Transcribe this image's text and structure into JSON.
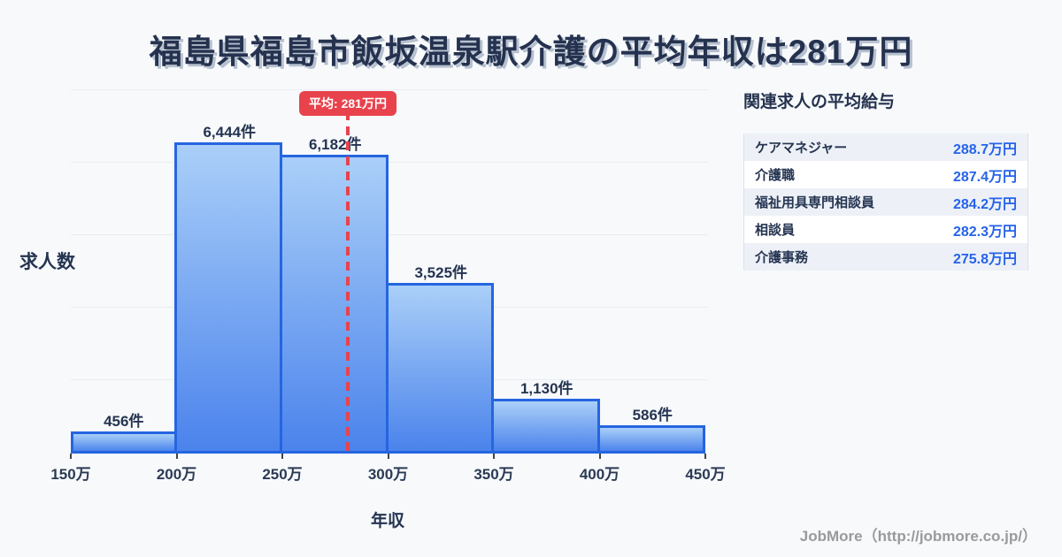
{
  "title": "福島県福島市飯坂温泉駅介護の平均年収は281万円",
  "chart_data": {
    "type": "bar",
    "title": "福島県福島市飯坂温泉駅介護の平均年収は281万円",
    "xlabel": "年収",
    "ylabel": "求人数",
    "categories": [
      "150万-200万",
      "200万-250万",
      "250万-300万",
      "300万-350万",
      "350万-400万",
      "400万-450万"
    ],
    "values": [
      456,
      6444,
      6182,
      3525,
      1130,
      586
    ],
    "bar_labels": [
      "456件",
      "6,444件",
      "6,182件",
      "3,525件",
      "1,130件",
      "586件"
    ],
    "x_ticks": [
      "150万",
      "200万",
      "250万",
      "300万",
      "350万",
      "400万",
      "450万"
    ],
    "x_range": [
      150,
      450
    ],
    "ylim": [
      0,
      6800
    ],
    "grid": "horizontal",
    "mean": {
      "value": 281,
      "label": "平均: 281万円"
    }
  },
  "side_panel": {
    "title": "関連求人の平均給与",
    "rows": [
      {
        "label": "ケアマネジャー",
        "value": "288.7万円"
      },
      {
        "label": "介護職",
        "value": "287.4万円"
      },
      {
        "label": "福祉用具専門相談員",
        "value": "284.2万円"
      },
      {
        "label": "相談員",
        "value": "282.3万円"
      },
      {
        "label": "介護事務",
        "value": "275.8万円"
      }
    ]
  },
  "footer": "JobMore（http://jobmore.co.jp/）",
  "colors": {
    "background": "#f7f9fb",
    "title_text": "#25324f",
    "bar_fill_top": "#aacff8",
    "bar_fill_bottom": "#4b83ec",
    "bar_border": "#2565e0",
    "mean_red": "#e8424d",
    "value_blue": "#2563eb",
    "row_alt_bg": "#edf1f7",
    "footer_gray": "#9a9a9a"
  }
}
